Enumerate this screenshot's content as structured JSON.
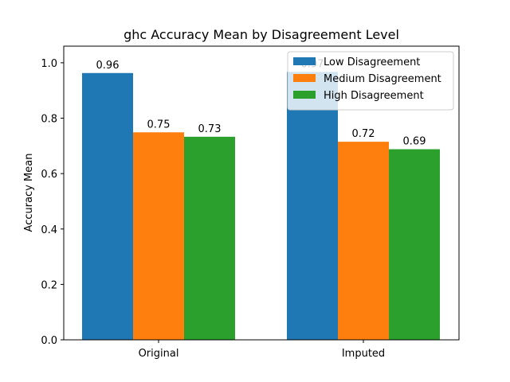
{
  "chart_data": {
    "type": "bar",
    "title": "ghc Accuracy Mean by Disagreement Level",
    "xlabel": "",
    "ylabel": "Accuracy Mean",
    "categories": [
      "Original",
      "Imputed"
    ],
    "series": [
      {
        "name": "Low Disagreement",
        "color": "#1f77b4",
        "values": [
          0.963,
          0.967
        ],
        "labels": [
          "0.96",
          "0.97"
        ]
      },
      {
        "name": "Medium Disagreement",
        "color": "#ff7f0e",
        "values": [
          0.749,
          0.715
        ],
        "labels": [
          "0.75",
          "0.72"
        ]
      },
      {
        "name": "High Disagreement",
        "color": "#2ca02c",
        "values": [
          0.733,
          0.688
        ],
        "labels": [
          "0.73",
          "0.69"
        ]
      }
    ],
    "ylim": [
      0,
      1.06
    ],
    "yticks": [
      0.0,
      0.2,
      0.4,
      0.6,
      0.8,
      1.0
    ],
    "ytick_labels": [
      "0.0",
      "0.2",
      "0.4",
      "0.6",
      "0.8",
      "1.0"
    ],
    "grid": false,
    "legend_position": "top-right"
  }
}
